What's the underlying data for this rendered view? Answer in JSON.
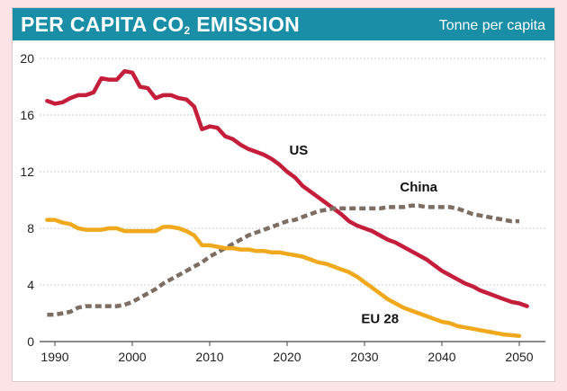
{
  "header": {
    "title": "PER CAPITA CO",
    "title_subscript": "2",
    "title_suffix": " EMISSION",
    "units": "Tonne per capita"
  },
  "colors": {
    "page_background": "#fbe3e6",
    "header": "#1a8ea6",
    "us": "#c41e3a",
    "eu28": "#f0a81c",
    "china": "#7d6d63"
  },
  "chart_data": {
    "type": "line",
    "title": "PER CAPITA CO2 EMISSION",
    "ylabel": "Tonne per capita",
    "xlabel": "",
    "xlim": [
      1989,
      2052
    ],
    "ylim": [
      0,
      20
    ],
    "x_ticks": [
      "1990",
      "2000",
      "2010",
      "2020",
      "2030",
      "2040",
      "2050"
    ],
    "y_ticks": [
      "0",
      "4",
      "8",
      "12",
      "16",
      "20"
    ],
    "grid": true,
    "legend": "direct labels on lines",
    "series": [
      {
        "name": "US",
        "style": "solid",
        "x": [
          1989,
          1990,
          1991,
          1992,
          1993,
          1994,
          1995,
          1996,
          1997,
          1998,
          1999,
          2000,
          2001,
          2002,
          2003,
          2004,
          2005,
          2006,
          2007,
          2008,
          2009,
          2010,
          2011,
          2012,
          2013,
          2014,
          2015,
          2016,
          2017,
          2018,
          2019,
          2020,
          2021,
          2022,
          2023,
          2024,
          2025,
          2026,
          2027,
          2028,
          2029,
          2030,
          2031,
          2032,
          2033,
          2034,
          2035,
          2036,
          2037,
          2038,
          2039,
          2040,
          2041,
          2042,
          2043,
          2044,
          2045,
          2046,
          2047,
          2048,
          2049,
          2050,
          2051
        ],
        "values": [
          17.0,
          16.8,
          16.9,
          17.2,
          17.4,
          17.4,
          17.6,
          18.6,
          18.5,
          18.5,
          19.1,
          19.0,
          18.0,
          17.9,
          17.2,
          17.4,
          17.4,
          17.2,
          17.1,
          16.6,
          15.0,
          15.2,
          15.1,
          14.5,
          14.3,
          13.9,
          13.6,
          13.4,
          13.2,
          12.9,
          12.5,
          12.0,
          11.6,
          11.0,
          10.6,
          10.2,
          9.8,
          9.4,
          9.0,
          8.5,
          8.2,
          8.0,
          7.8,
          7.5,
          7.2,
          7.0,
          6.7,
          6.4,
          6.1,
          5.8,
          5.4,
          5.0,
          4.7,
          4.4,
          4.1,
          3.9,
          3.6,
          3.4,
          3.2,
          3.0,
          2.8,
          2.7,
          2.5
        ]
      },
      {
        "name": "China",
        "style": "dashed",
        "x": [
          1989,
          1990,
          1991,
          1992,
          1993,
          1994,
          1995,
          1996,
          1997,
          1998,
          1999,
          2000,
          2001,
          2002,
          2003,
          2004,
          2005,
          2006,
          2007,
          2008,
          2009,
          2010,
          2011,
          2012,
          2013,
          2014,
          2015,
          2016,
          2017,
          2018,
          2019,
          2020,
          2021,
          2022,
          2023,
          2024,
          2025,
          2026,
          2027,
          2028,
          2029,
          2030,
          2031,
          2032,
          2033,
          2034,
          2035,
          2036,
          2037,
          2038,
          2039,
          2040,
          2041,
          2042,
          2043,
          2044,
          2045,
          2046,
          2047,
          2048,
          2049,
          2050
        ],
        "values": [
          1.9,
          1.9,
          2.0,
          2.1,
          2.4,
          2.5,
          2.5,
          2.5,
          2.5,
          2.5,
          2.6,
          2.8,
          3.1,
          3.4,
          3.7,
          4.1,
          4.4,
          4.7,
          5.0,
          5.3,
          5.6,
          6.0,
          6.3,
          6.6,
          6.9,
          7.2,
          7.5,
          7.7,
          7.9,
          8.1,
          8.3,
          8.5,
          8.6,
          8.8,
          9.0,
          9.2,
          9.3,
          9.4,
          9.4,
          9.4,
          9.4,
          9.4,
          9.4,
          9.4,
          9.5,
          9.5,
          9.5,
          9.6,
          9.6,
          9.5,
          9.5,
          9.5,
          9.5,
          9.4,
          9.2,
          9.0,
          8.9,
          8.8,
          8.7,
          8.6,
          8.5,
          8.5
        ]
      },
      {
        "name": "EU 28",
        "style": "solid",
        "x": [
          1989,
          1990,
          1991,
          1992,
          1993,
          1994,
          1995,
          1996,
          1997,
          1998,
          1999,
          2000,
          2001,
          2002,
          2003,
          2004,
          2005,
          2006,
          2007,
          2008,
          2009,
          2010,
          2011,
          2012,
          2013,
          2014,
          2015,
          2016,
          2017,
          2018,
          2019,
          2020,
          2021,
          2022,
          2023,
          2024,
          2025,
          2026,
          2027,
          2028,
          2029,
          2030,
          2031,
          2032,
          2033,
          2034,
          2035,
          2036,
          2037,
          2038,
          2039,
          2040,
          2041,
          2042,
          2043,
          2044,
          2045,
          2046,
          2047,
          2048,
          2049,
          2050
        ],
        "values": [
          8.6,
          8.6,
          8.4,
          8.3,
          8.0,
          7.9,
          7.9,
          7.9,
          8.0,
          8.0,
          7.8,
          7.8,
          7.8,
          7.8,
          7.8,
          8.1,
          8.1,
          8.0,
          7.8,
          7.5,
          6.8,
          6.8,
          6.7,
          6.6,
          6.6,
          6.5,
          6.5,
          6.4,
          6.4,
          6.3,
          6.3,
          6.2,
          6.1,
          6.0,
          5.8,
          5.6,
          5.5,
          5.3,
          5.1,
          4.9,
          4.6,
          4.2,
          3.8,
          3.4,
          3.0,
          2.7,
          2.4,
          2.2,
          2.0,
          1.8,
          1.6,
          1.4,
          1.3,
          1.1,
          1.0,
          0.9,
          0.8,
          0.7,
          0.6,
          0.5,
          0.45,
          0.4
        ]
      }
    ],
    "annotations": [
      {
        "text": "US",
        "x": 2021.5,
        "y": 13.2
      },
      {
        "text": "China",
        "x": 2037,
        "y": 10.6
      },
      {
        "text": "EU 28",
        "x": 2032,
        "y": 1.3
      }
    ]
  }
}
